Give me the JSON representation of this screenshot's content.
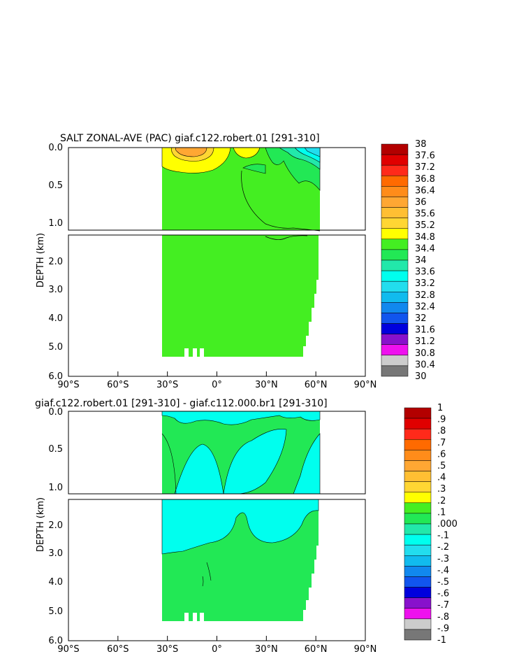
{
  "chart_data": [
    {
      "type": "heatmap",
      "title": "SALT ZONAL-AVE (PAC) giaf.c122.robert.01 [291-310]",
      "xlabel": "",
      "ylabel": "DEPTH (km)",
      "x_ticks": [
        "90°S",
        "60°S",
        "30°S",
        "0°",
        "30°N",
        "60°N",
        "90°N"
      ],
      "x_tick_values": [
        -90,
        -60,
        -30,
        0,
        30,
        60,
        90
      ],
      "xlim": [
        -90,
        90
      ],
      "y_ticks_upper": [
        "0.0",
        "0.5",
        "1.0"
      ],
      "y_tick_values_upper": [
        0.0,
        0.5,
        1.0
      ],
      "ylim_upper": [
        0,
        1.1
      ],
      "y_ticks_lower": [
        "2.0",
        "3.0",
        "4.0",
        "5.0",
        "6.0"
      ],
      "y_tick_values_lower": [
        2.0,
        3.0,
        4.0,
        5.0,
        6.0
      ],
      "ylim_lower": [
        1.1,
        6.0
      ],
      "y_inverted": true,
      "data_lat_range": [
        -33,
        62
      ],
      "dominant_value_range": [
        34.4,
        34.8
      ],
      "colorbar": {
        "labels": [
          "38",
          "37.6",
          "37.2",
          "36.8",
          "36.4",
          "36",
          "35.6",
          "35.2",
          "34.8",
          "34.4",
          "34",
          "33.6",
          "33.2",
          "32.8",
          "32.4",
          "32",
          "31.6",
          "31.2",
          "30.8",
          "30.4",
          "30"
        ],
        "values": [
          38,
          37.6,
          37.2,
          36.8,
          36.4,
          36,
          35.6,
          35.2,
          34.8,
          34.4,
          34,
          33.6,
          33.2,
          32.8,
          32.4,
          32,
          31.6,
          31.2,
          30.8,
          30.4,
          30
        ],
        "colors": [
          "#b30000",
          "#e00000",
          "#ff2a1a",
          "#ff6a00",
          "#ff8c1a",
          "#ffa733",
          "#ffbf33",
          "#ffd633",
          "#ffff00",
          "#44ee22",
          "#22e855",
          "#22e8aa",
          "#00ffee",
          "#22ddee",
          "#11bbee",
          "#1188ee",
          "#1155ee",
          "#0000dd",
          "#8811cc",
          "#ee11ee",
          "#cccccc",
          "#777777"
        ]
      }
    },
    {
      "type": "heatmap",
      "title": "giaf.c122.robert.01 [291-310] - giaf.c112.000.br1 [291-310]",
      "xlabel": "",
      "ylabel": "DEPTH (km)",
      "x_ticks": [
        "90°S",
        "60°S",
        "30°S",
        "0°",
        "30°N",
        "60°N",
        "90°N"
      ],
      "x_tick_values": [
        -90,
        -60,
        -30,
        0,
        30,
        60,
        90
      ],
      "xlim": [
        -90,
        90
      ],
      "y_ticks_upper": [
        "0.0",
        "0.5",
        "1.0"
      ],
      "y_tick_values_upper": [
        0.0,
        0.5,
        1.0
      ],
      "ylim_upper": [
        0,
        1.1
      ],
      "y_ticks_lower": [
        "2.0",
        "3.0",
        "4.0",
        "5.0",
        "6.0"
      ],
      "y_tick_values_lower": [
        2.0,
        3.0,
        4.0,
        5.0,
        6.0
      ],
      "ylim_lower": [
        1.1,
        6.0
      ],
      "y_inverted": true,
      "data_lat_range": [
        -33,
        62
      ],
      "colorbar": {
        "labels": [
          "1",
          ".9",
          ".8",
          ".7",
          ".6",
          ".5",
          ".4",
          ".3",
          ".2",
          ".1",
          ".000",
          "-.1",
          "-.2",
          "-.3",
          "-.4",
          "-.5",
          "-.6",
          "-.7",
          "-.8",
          "-.9",
          "-1"
        ],
        "values": [
          1,
          0.9,
          0.8,
          0.7,
          0.6,
          0.5,
          0.4,
          0.3,
          0.2,
          0.1,
          0.0,
          -0.1,
          -0.2,
          -0.3,
          -0.4,
          -0.5,
          -0.6,
          -0.7,
          -0.8,
          -0.9,
          -1
        ],
        "colors": [
          "#b30000",
          "#e00000",
          "#ff2a1a",
          "#ff6a00",
          "#ff8c1a",
          "#ffa733",
          "#ffbf33",
          "#ffd633",
          "#ffff00",
          "#44ee22",
          "#22e855",
          "#22e8aa",
          "#00ffee",
          "#22ddee",
          "#11bbee",
          "#1188ee",
          "#1155ee",
          "#0000dd",
          "#8811cc",
          "#ee11ee",
          "#cccccc",
          "#777777"
        ]
      }
    }
  ]
}
